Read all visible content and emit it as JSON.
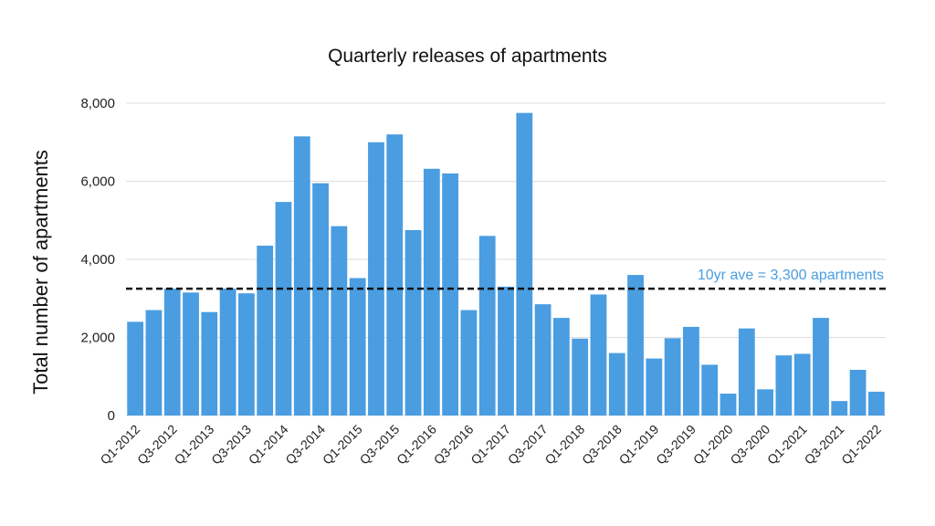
{
  "chart_data": {
    "type": "bar",
    "title": "Quarterly releases of apartments",
    "xlabel": "",
    "ylabel": "Total number of apartments",
    "ylim": [
      0,
      8000
    ],
    "yticks": [
      0,
      2000,
      4000,
      6000,
      8000
    ],
    "ytick_labels": [
      "0",
      "2,000",
      "4,000",
      "6,000",
      "8,000"
    ],
    "grid": true,
    "bar_color": "#4a9de0",
    "categories": [
      "Q1-2012",
      "Q2-2012",
      "Q3-2012",
      "Q4-2012",
      "Q1-2013",
      "Q2-2013",
      "Q3-2013",
      "Q4-2013",
      "Q1-2014",
      "Q2-2014",
      "Q3-2014",
      "Q4-2014",
      "Q1-2015",
      "Q2-2015",
      "Q3-2015",
      "Q4-2015",
      "Q1-2016",
      "Q2-2016",
      "Q3-2016",
      "Q4-2016",
      "Q1-2017",
      "Q2-2017",
      "Q3-2017",
      "Q4-2017",
      "Q1-2018",
      "Q2-2018",
      "Q3-2018",
      "Q4-2018",
      "Q1-2019",
      "Q2-2019",
      "Q3-2019",
      "Q4-2019",
      "Q1-2020",
      "Q2-2020",
      "Q3-2020",
      "Q4-2020",
      "Q1-2021",
      "Q2-2021",
      "Q3-2021",
      "Q4-2021",
      "Q1-2022"
    ],
    "visible_tick_labels": [
      "Q1-2012",
      "Q3-2012",
      "Q1-2013",
      "Q3-2013",
      "Q1-2014",
      "Q3-2014",
      "Q1-2015",
      "Q3-2015",
      "Q1-2016",
      "Q3-2016",
      "Q1-2017",
      "Q3-2017",
      "Q1-2018",
      "Q3-2018",
      "Q1-2019",
      "Q3-2019",
      "Q1-2020",
      "Q3-2020",
      "Q1-2021",
      "Q3-2021",
      "Q1-2022"
    ],
    "values": [
      2400,
      2700,
      3250,
      3150,
      2650,
      3250,
      3130,
      4350,
      5470,
      7150,
      5950,
      4850,
      3520,
      7000,
      7200,
      4750,
      6320,
      6200,
      2700,
      4600,
      3300,
      7750,
      2850,
      2500,
      1970,
      3100,
      1600,
      3600,
      1460,
      1980,
      2270,
      1300,
      560,
      2230,
      670,
      1540,
      1580,
      2500,
      370,
      1170,
      610
    ],
    "average_line": {
      "value": 3250,
      "label": "10yr ave = 3,300 apartments",
      "style": "dashed",
      "line_color": "#111111",
      "label_color": "#4a9de0"
    }
  }
}
